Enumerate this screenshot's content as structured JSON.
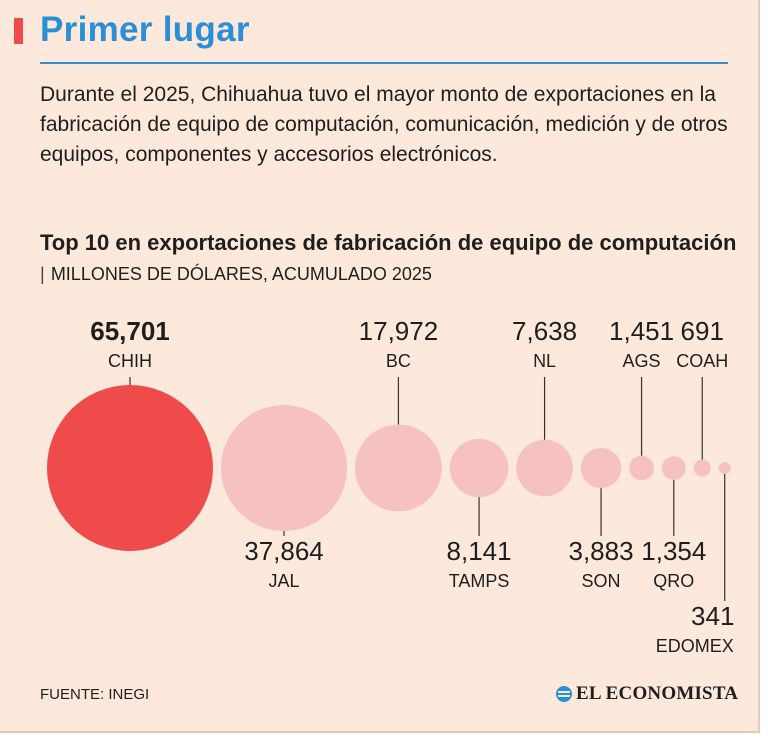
{
  "header": {
    "title": "Primer lugar",
    "intro": "Durante el 2025, Chihuahua tuvo el mayor monto de exportaciones en la fabricación de equipo de computación, comunicación, medición y de otros equipos, componentes y accesorios electrónicos."
  },
  "chart_data": {
    "type": "bubble",
    "title": "Top 10 en exportaciones de fabricación de equipo de computación",
    "separator": "|",
    "subtitle": "MILLONES DE DÓLARES, ACUMULADO 2025",
    "categories": [
      "CHIH",
      "JAL",
      "BC",
      "TAMPS",
      "NL",
      "SON",
      "AGS",
      "QRO",
      "COAH",
      "EDOMEX"
    ],
    "values": [
      65701,
      37864,
      17972,
      8141,
      7638,
      3883,
      1451,
      1354,
      691,
      341
    ],
    "value_labels": [
      "65,701",
      "37,864",
      "17,972",
      "8,141",
      "7,638",
      "3,883",
      "1,451",
      "1,354",
      "691",
      "341"
    ],
    "label_positions": [
      "above",
      "below",
      "above",
      "below",
      "above",
      "below",
      "above",
      "below",
      "above",
      "below"
    ],
    "highlight": "CHIH",
    "colors": {
      "highlight": "#f04b4b",
      "other": "#f6c1c3",
      "leader": "#333333"
    }
  },
  "footer": {
    "source": "FUENTE: INEGI",
    "logo": "EL ECONOMISTA"
  }
}
